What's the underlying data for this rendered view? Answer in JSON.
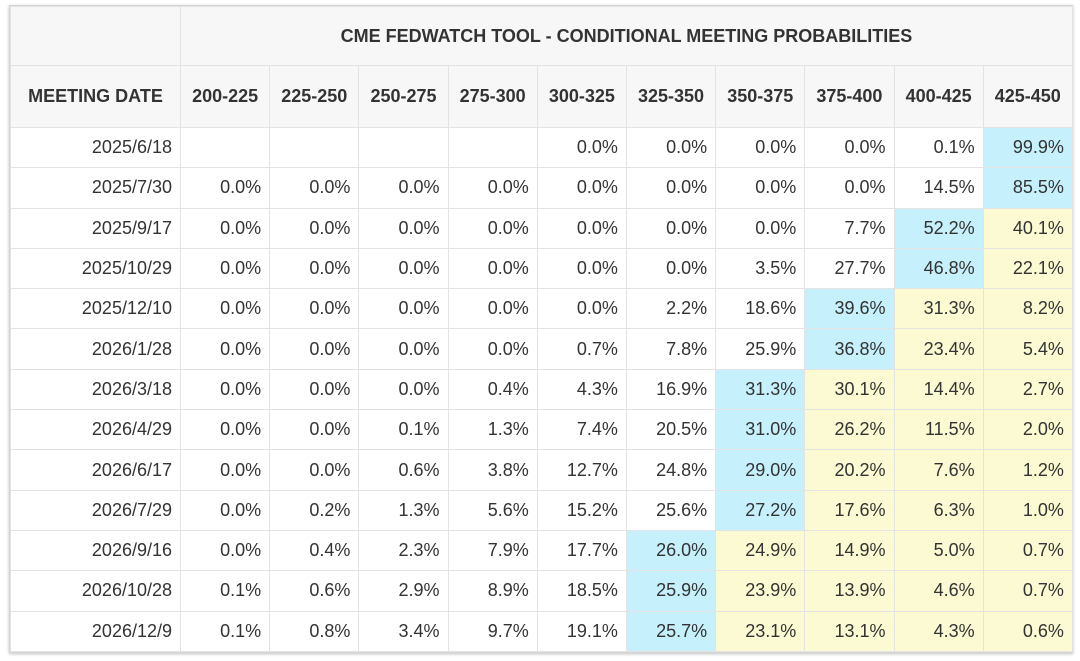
{
  "chart_data": {
    "type": "table",
    "title": "CME FEDWATCH TOOL - CONDITIONAL MEETING PROBABILITIES",
    "row_header": "MEETING DATE",
    "columns": [
      "200-225",
      "225-250",
      "250-275",
      "275-300",
      "300-325",
      "325-350",
      "350-375",
      "375-400",
      "400-425",
      "425-450"
    ],
    "rows": [
      {
        "date": "2025/6/18",
        "values": [
          "",
          "",
          "",
          "",
          "0.0%",
          "0.0%",
          "0.0%",
          "0.0%",
          "0.1%",
          "99.9%"
        ]
      },
      {
        "date": "2025/7/30",
        "values": [
          "0.0%",
          "0.0%",
          "0.0%",
          "0.0%",
          "0.0%",
          "0.0%",
          "0.0%",
          "0.0%",
          "14.5%",
          "85.5%"
        ]
      },
      {
        "date": "2025/9/17",
        "values": [
          "0.0%",
          "0.0%",
          "0.0%",
          "0.0%",
          "0.0%",
          "0.0%",
          "0.0%",
          "7.7%",
          "52.2%",
          "40.1%"
        ]
      },
      {
        "date": "2025/10/29",
        "values": [
          "0.0%",
          "0.0%",
          "0.0%",
          "0.0%",
          "0.0%",
          "0.0%",
          "3.5%",
          "27.7%",
          "46.8%",
          "22.1%"
        ]
      },
      {
        "date": "2025/12/10",
        "values": [
          "0.0%",
          "0.0%",
          "0.0%",
          "0.0%",
          "0.0%",
          "2.2%",
          "18.6%",
          "39.6%",
          "31.3%",
          "8.2%"
        ]
      },
      {
        "date": "2026/1/28",
        "values": [
          "0.0%",
          "0.0%",
          "0.0%",
          "0.0%",
          "0.7%",
          "7.8%",
          "25.9%",
          "36.8%",
          "23.4%",
          "5.4%"
        ]
      },
      {
        "date": "2026/3/18",
        "values": [
          "0.0%",
          "0.0%",
          "0.0%",
          "0.4%",
          "4.3%",
          "16.9%",
          "31.3%",
          "30.1%",
          "14.4%",
          "2.7%"
        ]
      },
      {
        "date": "2026/4/29",
        "values": [
          "0.0%",
          "0.0%",
          "0.1%",
          "1.3%",
          "7.4%",
          "20.5%",
          "31.0%",
          "26.2%",
          "11.5%",
          "2.0%"
        ]
      },
      {
        "date": "2026/6/17",
        "values": [
          "0.0%",
          "0.0%",
          "0.6%",
          "3.8%",
          "12.7%",
          "24.8%",
          "29.0%",
          "20.2%",
          "7.6%",
          "1.2%"
        ]
      },
      {
        "date": "2026/7/29",
        "values": [
          "0.0%",
          "0.2%",
          "1.3%",
          "5.6%",
          "15.2%",
          "25.6%",
          "27.2%",
          "17.6%",
          "6.3%",
          "1.0%"
        ]
      },
      {
        "date": "2026/9/16",
        "values": [
          "0.0%",
          "0.4%",
          "2.3%",
          "7.9%",
          "17.7%",
          "26.0%",
          "24.9%",
          "14.9%",
          "5.0%",
          "0.7%"
        ]
      },
      {
        "date": "2026/10/28",
        "values": [
          "0.1%",
          "0.6%",
          "2.9%",
          "8.9%",
          "18.5%",
          "25.9%",
          "23.9%",
          "13.9%",
          "4.6%",
          "0.7%"
        ]
      },
      {
        "date": "2026/12/9",
        "values": [
          "0.1%",
          "0.8%",
          "3.4%",
          "9.7%",
          "19.1%",
          "25.7%",
          "23.1%",
          "13.1%",
          "4.3%",
          "0.6%"
        ]
      }
    ],
    "highlight_colors": {
      "max": "#c6f0fb",
      "current_or_higher": "#fbfad2"
    },
    "highlights": [
      {
        "row": 0,
        "col": 9,
        "kind": "max"
      },
      {
        "row": 1,
        "col": 9,
        "kind": "max"
      },
      {
        "row": 2,
        "col": 8,
        "kind": "max"
      },
      {
        "row": 2,
        "col": 9,
        "kind": "current_or_higher"
      },
      {
        "row": 3,
        "col": 8,
        "kind": "max"
      },
      {
        "row": 3,
        "col": 9,
        "kind": "current_or_higher"
      },
      {
        "row": 4,
        "col": 7,
        "kind": "max"
      },
      {
        "row": 4,
        "col": 8,
        "kind": "current_or_higher"
      },
      {
        "row": 4,
        "col": 9,
        "kind": "current_or_higher"
      },
      {
        "row": 5,
        "col": 7,
        "kind": "max"
      },
      {
        "row": 5,
        "col": 8,
        "kind": "current_or_higher"
      },
      {
        "row": 5,
        "col": 9,
        "kind": "current_or_higher"
      },
      {
        "row": 6,
        "col": 6,
        "kind": "max"
      },
      {
        "row": 6,
        "col": 7,
        "kind": "current_or_higher"
      },
      {
        "row": 6,
        "col": 8,
        "kind": "current_or_higher"
      },
      {
        "row": 6,
        "col": 9,
        "kind": "current_or_higher"
      },
      {
        "row": 7,
        "col": 6,
        "kind": "max"
      },
      {
        "row": 7,
        "col": 7,
        "kind": "current_or_higher"
      },
      {
        "row": 7,
        "col": 8,
        "kind": "current_or_higher"
      },
      {
        "row": 7,
        "col": 9,
        "kind": "current_or_higher"
      },
      {
        "row": 8,
        "col": 6,
        "kind": "max"
      },
      {
        "row": 8,
        "col": 7,
        "kind": "current_or_higher"
      },
      {
        "row": 8,
        "col": 8,
        "kind": "current_or_higher"
      },
      {
        "row": 8,
        "col": 9,
        "kind": "current_or_higher"
      },
      {
        "row": 9,
        "col": 6,
        "kind": "max"
      },
      {
        "row": 9,
        "col": 7,
        "kind": "current_or_higher"
      },
      {
        "row": 9,
        "col": 8,
        "kind": "current_or_higher"
      },
      {
        "row": 9,
        "col": 9,
        "kind": "current_or_higher"
      },
      {
        "row": 10,
        "col": 5,
        "kind": "max"
      },
      {
        "row": 10,
        "col": 6,
        "kind": "current_or_higher"
      },
      {
        "row": 10,
        "col": 7,
        "kind": "current_or_higher"
      },
      {
        "row": 10,
        "col": 8,
        "kind": "current_or_higher"
      },
      {
        "row": 10,
        "col": 9,
        "kind": "current_or_higher"
      },
      {
        "row": 11,
        "col": 5,
        "kind": "max"
      },
      {
        "row": 11,
        "col": 6,
        "kind": "current_or_higher"
      },
      {
        "row": 11,
        "col": 7,
        "kind": "current_or_higher"
      },
      {
        "row": 11,
        "col": 8,
        "kind": "current_or_higher"
      },
      {
        "row": 11,
        "col": 9,
        "kind": "current_or_higher"
      },
      {
        "row": 12,
        "col": 5,
        "kind": "max"
      },
      {
        "row": 12,
        "col": 6,
        "kind": "current_or_higher"
      },
      {
        "row": 12,
        "col": 7,
        "kind": "current_or_higher"
      },
      {
        "row": 12,
        "col": 8,
        "kind": "current_or_higher"
      },
      {
        "row": 12,
        "col": 9,
        "kind": "current_or_higher"
      }
    ]
  }
}
